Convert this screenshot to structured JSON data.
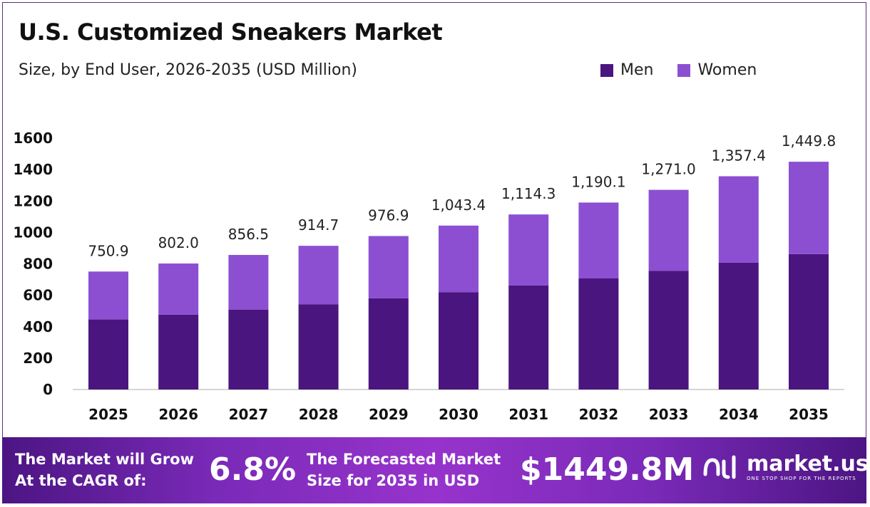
{
  "title": "U.S. Customized Sneakers Market",
  "subtitle": "Size, by End User, 2026-2035 (USD Million)",
  "colors": {
    "men": "#4b1580",
    "women": "#8c4fd2",
    "banner": "#7a2ab8"
  },
  "chart_data": {
    "type": "bar",
    "stacked": true,
    "categories": [
      "2025",
      "2026",
      "2027",
      "2028",
      "2029",
      "2030",
      "2031",
      "2032",
      "2033",
      "2034",
      "2035"
    ],
    "series": [
      {
        "name": "Men",
        "values": [
          446,
          477,
          509,
          543,
          581,
          620,
          662,
          707,
          756,
          807,
          862
        ]
      },
      {
        "name": "Women",
        "values": [
          304.9,
          325.0,
          347.5,
          371.7,
          395.9,
          423.4,
          452.3,
          483.1,
          515.0,
          550.4,
          587.8
        ]
      }
    ],
    "totals": [
      750.9,
      802.0,
      856.5,
      914.7,
      976.9,
      1043.4,
      1114.3,
      1190.1,
      1271.0,
      1357.4,
      1449.8
    ],
    "total_labels": [
      "750.9",
      "802.0",
      "856.5",
      "914.7",
      "976.9",
      "1,043.4",
      "1,114.3",
      "1,190.1",
      "1,271.0",
      "1,357.4",
      "1,449.8"
    ],
    "yticks": [
      "0",
      "200",
      "400",
      "600",
      "800",
      "1000",
      "1200",
      "1400",
      "1600"
    ],
    "ylim": [
      0,
      1600
    ],
    "legend_position": "top-right",
    "grid": false
  },
  "banner": {
    "cagr_line1": "The Market will Grow",
    "cagr_line2": "At the CAGR of:",
    "cagr_value": "6.8%",
    "forecast_line1": "The Forecasted Market",
    "forecast_line2": "Size for 2035 in USD",
    "forecast_value": "$1449.8M",
    "logo_name": "market.us",
    "logo_tagline": "ONE STOP SHOP FOR THE REPORTS"
  }
}
